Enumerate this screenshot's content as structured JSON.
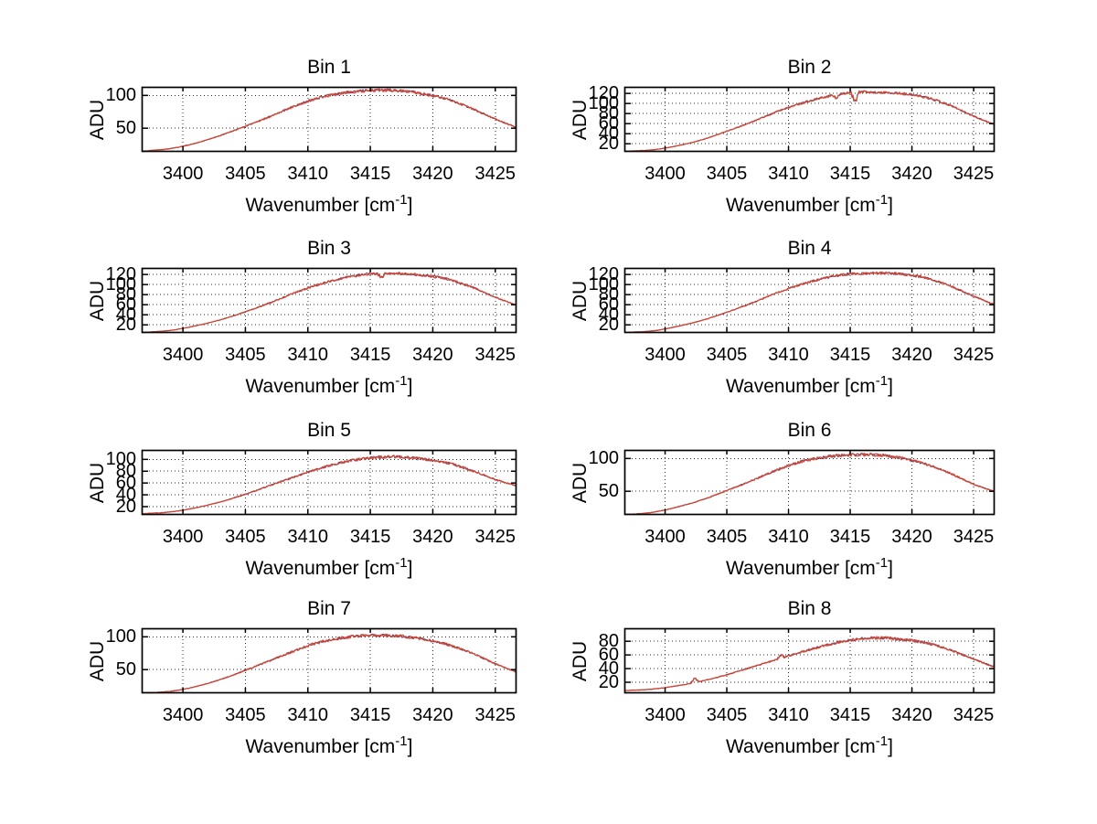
{
  "figure": {
    "background": "#ffffff",
    "ylabel": "ADU",
    "xlabel": {
      "base": "Wavenumber [cm",
      "sup": "-1",
      "close": "]",
      "full": "Wavenumber [cm^-1]"
    },
    "colors": {
      "line_primary": "#cf4634",
      "line_secondary": "#70345e",
      "axis": "#000000",
      "grid": "#2a2a2a",
      "text": "#000000"
    }
  },
  "chart_data": [
    {
      "type": "line",
      "title": "Bin 1",
      "xlabel": "Wavenumber [cm^-1]",
      "ylabel": "ADU",
      "xlim": [
        3396.7,
        3426.7
      ],
      "ylim": [
        14,
        113
      ],
      "xticks": [
        3400,
        3405,
        3410,
        3415,
        3420,
        3425
      ],
      "yticks": [
        50,
        100
      ],
      "grid": true,
      "legend": "none",
      "x_anchors": [
        3396.8,
        3399,
        3401,
        3403,
        3405,
        3407,
        3409,
        3411,
        3413,
        3414.5,
        3416,
        3417.5,
        3419,
        3421,
        3423,
        3425,
        3426.6
      ],
      "y_anchors": [
        15,
        19,
        27,
        39,
        53,
        68,
        84,
        97,
        104,
        107,
        108,
        107,
        103,
        95,
        81,
        64,
        52
      ],
      "spikes": [],
      "seed": 11,
      "noise": 2.0
    },
    {
      "type": "line",
      "title": "Bin 2",
      "xlabel": "Wavenumber [cm^-1]",
      "ylabel": "ADU",
      "xlim": [
        3396.7,
        3426.7
      ],
      "ylim": [
        4,
        133
      ],
      "xticks": [
        3400,
        3405,
        3410,
        3415,
        3420,
        3425
      ],
      "yticks": [
        20,
        40,
        60,
        80,
        100,
        120
      ],
      "grid": true,
      "legend": "none",
      "x_anchors": [
        3396.8,
        3399,
        3401,
        3403,
        3405,
        3407,
        3409,
        3411,
        3413,
        3414.5,
        3416,
        3417.5,
        3419,
        3421,
        3423,
        3425,
        3426.6
      ],
      "y_anchors": [
        5,
        8,
        16,
        28,
        45,
        63,
        83,
        100,
        113,
        120,
        123,
        122,
        120,
        113,
        97,
        75,
        59
      ],
      "spikes": [
        {
          "x": 3415.4,
          "dy": -16
        },
        {
          "x": 3413.9,
          "dy": -6
        }
      ],
      "seed": 22,
      "noise": 2.2
    },
    {
      "type": "line",
      "title": "Bin 3",
      "xlabel": "Wavenumber [cm^-1]",
      "ylabel": "ADU",
      "xlim": [
        3396.7,
        3426.7
      ],
      "ylim": [
        4,
        133
      ],
      "xticks": [
        3400,
        3405,
        3410,
        3415,
        3420,
        3425
      ],
      "yticks": [
        20,
        40,
        60,
        80,
        100,
        120
      ],
      "grid": true,
      "legend": "none",
      "x_anchors": [
        3396.8,
        3399,
        3401,
        3403,
        3405,
        3407,
        3409,
        3411,
        3413,
        3414.5,
        3416,
        3417.5,
        3419,
        3421,
        3423,
        3425,
        3426.6
      ],
      "y_anchors": [
        5,
        9,
        18,
        30,
        46,
        64,
        84,
        101,
        114,
        120,
        122,
        122,
        119,
        112,
        96,
        75,
        60
      ],
      "spikes": [
        {
          "x": 3415.9,
          "dy": -7
        }
      ],
      "seed": 33,
      "noise": 2.2
    },
    {
      "type": "line",
      "title": "Bin 4",
      "xlabel": "Wavenumber [cm^-1]",
      "ylabel": "ADU",
      "xlim": [
        3396.7,
        3426.7
      ],
      "ylim": [
        4,
        133
      ],
      "xticks": [
        3400,
        3405,
        3410,
        3415,
        3420,
        3425
      ],
      "yticks": [
        20,
        40,
        60,
        80,
        100,
        120
      ],
      "grid": true,
      "legend": "none",
      "x_anchors": [
        3396.8,
        3399,
        3401,
        3403,
        3405,
        3407,
        3409,
        3411,
        3413,
        3414.5,
        3416,
        3417.5,
        3419,
        3421,
        3423,
        3425,
        3426.6
      ],
      "y_anchors": [
        5,
        8,
        17,
        29,
        45,
        63,
        83,
        100,
        113,
        120,
        122,
        123,
        121,
        114,
        98,
        77,
        61
      ],
      "spikes": [],
      "seed": 44,
      "noise": 2.2
    },
    {
      "type": "line",
      "title": "Bin 5",
      "xlabel": "Wavenumber [cm^-1]",
      "ylabel": "ADU",
      "xlim": [
        3396.7,
        3426.7
      ],
      "ylim": [
        6,
        116
      ],
      "xticks": [
        3400,
        3405,
        3410,
        3415,
        3420,
        3425
      ],
      "yticks": [
        20,
        40,
        60,
        80,
        100
      ],
      "grid": true,
      "legend": "none",
      "x_anchors": [
        3396.8,
        3399,
        3401,
        3403,
        3405,
        3407,
        3409,
        3411,
        3413,
        3414.5,
        3416,
        3417.5,
        3419,
        3421,
        3423,
        3425,
        3426.6
      ],
      "y_anchors": [
        8,
        11,
        18,
        28,
        41,
        56,
        71,
        85,
        96,
        101,
        104,
        104,
        101,
        95,
        82,
        66,
        56
      ],
      "spikes": [],
      "seed": 55,
      "noise": 2.0
    },
    {
      "type": "line",
      "title": "Bin 6",
      "xlabel": "Wavenumber [cm^-1]",
      "ylabel": "ADU",
      "xlim": [
        3396.7,
        3426.7
      ],
      "ylim": [
        14,
        113
      ],
      "xticks": [
        3400,
        3405,
        3410,
        3415,
        3420,
        3425
      ],
      "yticks": [
        50,
        100
      ],
      "grid": true,
      "legend": "none",
      "x_anchors": [
        3396.8,
        3399,
        3401,
        3403,
        3405,
        3407,
        3409,
        3411,
        3413,
        3414.5,
        3416,
        3417.5,
        3419,
        3421,
        3423,
        3425,
        3426.6
      ],
      "y_anchors": [
        14,
        18,
        26,
        37,
        51,
        66,
        82,
        95,
        102,
        105,
        106,
        105,
        101,
        92,
        78,
        61,
        50
      ],
      "spikes": [],
      "seed": 66,
      "noise": 2.0
    },
    {
      "type": "line",
      "title": "Bin 7",
      "xlabel": "Wavenumber [cm^-1]",
      "ylabel": "ADU",
      "xlim": [
        3396.7,
        3426.7
      ],
      "ylim": [
        14,
        113
      ],
      "xticks": [
        3400,
        3405,
        3410,
        3415,
        3420,
        3425
      ],
      "yticks": [
        50,
        100
      ],
      "grid": true,
      "legend": "none",
      "x_anchors": [
        3396.8,
        3399,
        3401,
        3403,
        3405,
        3407,
        3409,
        3411,
        3413,
        3414.5,
        3416,
        3417.5,
        3419,
        3421,
        3423,
        3425,
        3426.6
      ],
      "y_anchors": [
        14,
        17,
        24,
        35,
        49,
        64,
        79,
        92,
        99,
        102,
        102,
        101,
        97,
        89,
        76,
        59,
        47
      ],
      "spikes": [],
      "seed": 77,
      "noise": 1.9
    },
    {
      "type": "line",
      "title": "Bin 8",
      "xlabel": "Wavenumber [cm^-1]",
      "ylabel": "ADU",
      "xlim": [
        3396.7,
        3426.7
      ],
      "ylim": [
        4,
        99
      ],
      "xticks": [
        3400,
        3405,
        3410,
        3415,
        3420,
        3425
      ],
      "yticks": [
        20,
        40,
        60,
        80
      ],
      "grid": true,
      "legend": "none",
      "x_anchors": [
        3396.8,
        3399,
        3401,
        3403,
        3405,
        3407,
        3409,
        3411,
        3413,
        3414.5,
        3416,
        3417.5,
        3419,
        3421,
        3423,
        3425,
        3426.6
      ],
      "y_anchors": [
        8,
        10,
        15,
        22,
        31,
        42,
        53,
        64,
        74,
        80,
        84,
        85,
        83,
        78,
        68,
        54,
        43
      ],
      "spikes": [
        {
          "x": 3402.4,
          "dy": 6
        },
        {
          "x": 3409.4,
          "dy": 4
        }
      ],
      "seed": 88,
      "noise": 1.8
    }
  ]
}
